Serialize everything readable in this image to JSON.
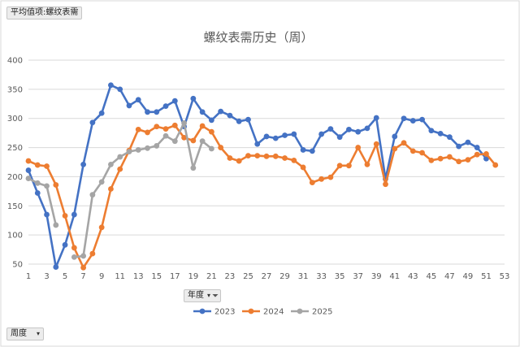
{
  "pivot": {
    "value_field": "平均值项:螺纹表需",
    "year_field": "年度",
    "week_field": "周度"
  },
  "chart_data": {
    "type": "line",
    "title": "螺纹表需历史（周）",
    "xlabel": "",
    "ylabel": "",
    "xlim": [
      1,
      53
    ],
    "ylim": [
      50,
      400
    ],
    "y_ticks": [
      50,
      100,
      150,
      200,
      250,
      300,
      350,
      400
    ],
    "x_ticks": [
      1,
      3,
      5,
      7,
      9,
      11,
      13,
      15,
      17,
      19,
      21,
      23,
      25,
      27,
      29,
      31,
      33,
      35,
      37,
      39,
      41,
      43,
      45,
      47,
      49,
      51,
      53
    ],
    "grid": "horizontal",
    "legend_position": "bottom",
    "series": [
      {
        "name": "2023",
        "color": "#4472C4",
        "x": [
          1,
          2,
          3,
          4,
          5,
          6,
          7,
          8,
          9,
          10,
          11,
          12,
          13,
          14,
          15,
          16,
          17,
          18,
          19,
          20,
          21,
          22,
          23,
          24,
          25,
          26,
          27,
          28,
          29,
          30,
          31,
          32,
          33,
          34,
          35,
          36,
          37,
          38,
          39,
          40,
          41,
          42,
          43,
          44,
          45,
          46,
          47,
          48,
          49,
          50,
          51
        ],
        "values": [
          211,
          172,
          135,
          45,
          83,
          135,
          221,
          293,
          309,
          357,
          350,
          322,
          332,
          311,
          311,
          321,
          330,
          286,
          334,
          311,
          297,
          312,
          305,
          295,
          298,
          256,
          269,
          266,
          271,
          273,
          246,
          244,
          273,
          282,
          268,
          281,
          277,
          283,
          301,
          196,
          269,
          300,
          296,
          298,
          279,
          274,
          268,
          252,
          259,
          250,
          231
        ]
      },
      {
        "name": "2024",
        "color": "#ED7D31",
        "x": [
          1,
          2,
          3,
          4,
          5,
          6,
          7,
          8,
          9,
          10,
          11,
          12,
          13,
          14,
          15,
          16,
          17,
          18,
          19,
          20,
          21,
          22,
          23,
          24,
          25,
          26,
          27,
          28,
          29,
          30,
          31,
          32,
          33,
          34,
          35,
          36,
          37,
          38,
          39,
          40,
          41,
          42,
          43,
          44,
          45,
          46,
          47,
          48,
          49,
          50,
          51,
          52
        ],
        "values": [
          227,
          220,
          218,
          186,
          133,
          78,
          44,
          68,
          113,
          179,
          213,
          245,
          281,
          276,
          286,
          282,
          288,
          267,
          262,
          287,
          277,
          250,
          232,
          227,
          236,
          236,
          235,
          235,
          232,
          228,
          216,
          190,
          196,
          199,
          219,
          219,
          250,
          221,
          256,
          187,
          248,
          258,
          244,
          241,
          228,
          231,
          234,
          226,
          229,
          238,
          239,
          220
        ]
      },
      {
        "name": "2025",
        "color": "#A5A5A5",
        "x": [
          1,
          2,
          3,
          4,
          5,
          6,
          7,
          8,
          9,
          10,
          11,
          12,
          13,
          14,
          15,
          16,
          17,
          18,
          19,
          20,
          21
        ],
        "values": [
          197,
          189,
          184,
          117,
          null,
          62,
          64,
          169,
          191,
          221,
          234,
          243,
          246,
          249,
          253,
          270,
          261,
          292,
          215,
          261,
          248
        ]
      }
    ]
  }
}
